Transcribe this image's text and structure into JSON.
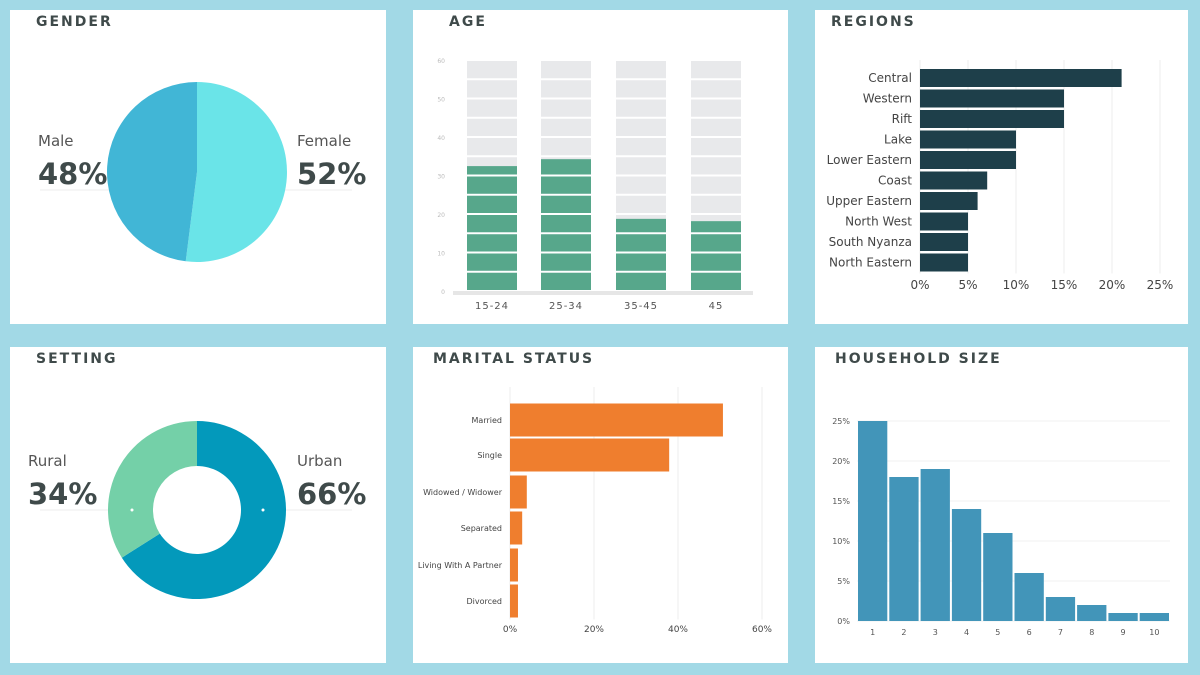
{
  "colors": {
    "background": "#a2d9e6",
    "male": "#41b6d6",
    "female": "#6ae4e8",
    "age_fill": "#57a78b",
    "age_empty": "#e8e9eb",
    "regions": "#1e3f4a",
    "urban": "#0399bb",
    "rural": "#74d0a8",
    "marital": "#ef7e2e",
    "household": "#4295b9"
  },
  "gender": {
    "title": "GENDER",
    "chart_data": {
      "type": "pie",
      "categories": [
        "Female",
        "Male"
      ],
      "values": [
        52,
        48
      ],
      "labels": {
        "male": "Male",
        "male_value": "48%",
        "female": "Female",
        "female_value": "52%"
      }
    }
  },
  "age": {
    "title": "AGE",
    "chart_data": {
      "type": "bar",
      "categories": [
        "15-24",
        "25-34",
        "35-45",
        "45"
      ],
      "values": [
        32.7,
        34.5,
        19,
        18.4
      ],
      "ylim": [
        0,
        60
      ],
      "yticks": [
        "0",
        "10",
        "20",
        "30",
        "40",
        "50",
        "60"
      ],
      "segment": 5
    }
  },
  "regions": {
    "title": "REGIONS",
    "chart_data": {
      "type": "bar",
      "orientation": "horizontal",
      "categories": [
        "Central",
        "Western",
        "Rift",
        "Lake",
        "Lower Eastern",
        "Coast",
        "Upper Eastern",
        "North West",
        "South Nyanza",
        "North Eastern"
      ],
      "values": [
        21,
        15,
        15,
        10,
        10,
        7,
        6,
        5,
        5,
        5
      ],
      "xlim": [
        0,
        25
      ],
      "xticks": [
        "0%",
        "5%",
        "10%",
        "15%",
        "20%",
        "25%"
      ],
      "grid": true
    }
  },
  "setting": {
    "title": "SETTING",
    "chart_data": {
      "type": "pie",
      "donut": true,
      "categories": [
        "Urban",
        "Rural"
      ],
      "values": [
        66,
        34
      ],
      "labels": {
        "rural": "Rural",
        "rural_value": "34%",
        "urban": "Urban",
        "urban_value": "66%"
      }
    }
  },
  "marital": {
    "title": "MARITAL STATUS",
    "chart_data": {
      "type": "bar",
      "orientation": "horizontal",
      "categories": [
        "Married",
        "Single",
        "Widowed / Widower",
        "Separated",
        "Living With A Partner",
        "Divorced"
      ],
      "values": [
        50.7,
        37.9,
        4,
        2.9,
        1.9,
        1.9
      ],
      "xlim": [
        0,
        60
      ],
      "xticks": [
        "0%",
        "20%",
        "40%",
        "60%"
      ],
      "grid": true
    }
  },
  "household": {
    "title": "HOUSEHOLD SIZE",
    "chart_data": {
      "type": "bar",
      "categories": [
        "1",
        "2",
        "3",
        "4",
        "5",
        "6",
        "7",
        "8",
        "9",
        "10"
      ],
      "values": [
        25,
        18,
        19,
        14,
        11,
        6,
        3,
        2,
        1,
        1
      ],
      "ylim": [
        0,
        25
      ],
      "yticks": [
        "0%",
        "5%",
        "10%",
        "15%",
        "20%",
        "25%"
      ],
      "grid": true
    }
  }
}
